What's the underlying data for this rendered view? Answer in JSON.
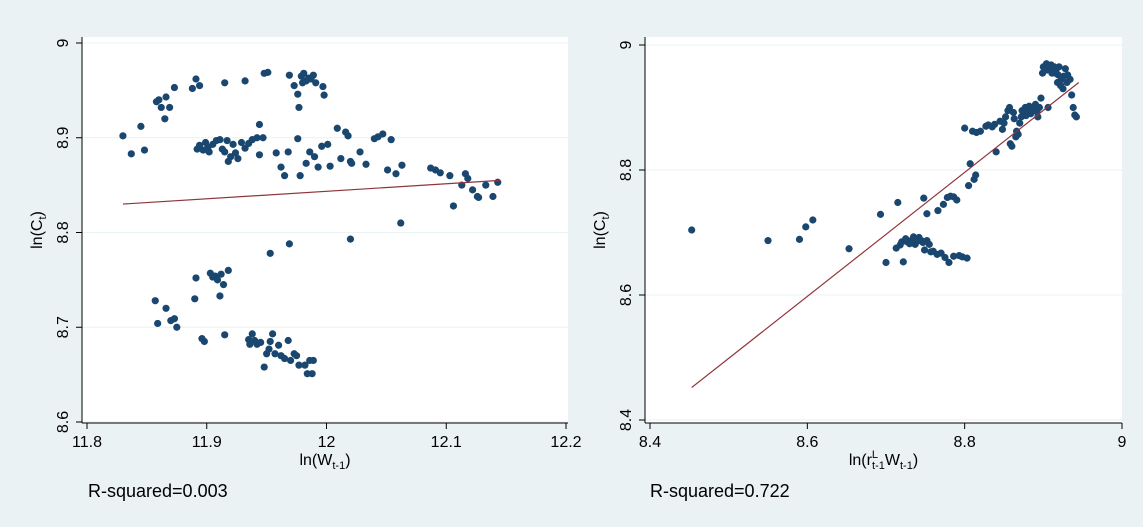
{
  "chart_data": [
    {
      "type": "scatter",
      "xlabel": "ln(W",
      "xlabel_sub": "t-1",
      "xlabel_close": ")",
      "ylabel": "ln(C",
      "ylabel_sub": "t",
      "ylabel_close": ")",
      "xlim": [
        11.8,
        12.2
      ],
      "ylim": [
        8.6,
        9.0
      ],
      "xticks": [
        "11.8",
        "11.9",
        "12",
        "12.1",
        "12.2"
      ],
      "yticks": [
        "8.6",
        "8.7",
        "8.8",
        "8.9",
        "9"
      ],
      "grid": true,
      "caption": "R-squared=0.003",
      "fit_line": {
        "x": [
          11.83,
          12.145
        ],
        "y": [
          8.83,
          8.855
        ]
      },
      "points": [
        [
          11.83,
          8.902
        ],
        [
          11.837,
          8.883
        ],
        [
          11.845,
          8.912
        ],
        [
          11.848,
          8.887
        ],
        [
          11.858,
          8.938
        ],
        [
          11.86,
          8.94
        ],
        [
          11.862,
          8.932
        ],
        [
          11.865,
          8.92
        ],
        [
          11.866,
          8.943
        ],
        [
          11.869,
          8.932
        ],
        [
          11.873,
          8.953
        ],
        [
          11.888,
          8.952
        ],
        [
          11.891,
          8.962
        ],
        [
          11.894,
          8.955
        ],
        [
          11.915,
          8.958
        ],
        [
          11.932,
          8.96
        ],
        [
          11.948,
          8.968
        ],
        [
          11.951,
          8.969
        ],
        [
          11.969,
          8.966
        ],
        [
          11.973,
          8.955
        ],
        [
          11.976,
          8.946
        ],
        [
          11.977,
          8.932
        ],
        [
          11.979,
          8.965
        ],
        [
          11.98,
          8.958
        ],
        [
          11.981,
          8.968
        ],
        [
          11.983,
          8.96
        ],
        [
          11.985,
          8.963
        ],
        [
          11.987,
          8.962
        ],
        [
          11.989,
          8.966
        ],
        [
          11.991,
          8.958
        ],
        [
          11.997,
          8.954
        ],
        [
          11.998,
          8.945
        ],
        [
          11.892,
          8.888
        ],
        [
          11.894,
          8.892
        ],
        [
          11.897,
          8.887
        ],
        [
          11.899,
          8.895
        ],
        [
          11.901,
          8.89
        ],
        [
          11.902,
          8.885
        ],
        [
          11.905,
          8.893
        ],
        [
          11.908,
          8.897
        ],
        [
          11.911,
          8.898
        ],
        [
          11.913,
          8.888
        ],
        [
          11.915,
          8.885
        ],
        [
          11.917,
          8.897
        ],
        [
          11.918,
          8.875
        ],
        [
          11.92,
          8.88
        ],
        [
          11.922,
          8.893
        ],
        [
          11.924,
          8.884
        ],
        [
          11.926,
          8.878
        ],
        [
          11.929,
          8.895
        ],
        [
          11.932,
          8.889
        ],
        [
          11.935,
          8.894
        ],
        [
          11.938,
          8.898
        ],
        [
          11.942,
          8.9
        ],
        [
          11.944,
          8.914
        ],
        [
          11.947,
          8.9
        ],
        [
          11.944,
          8.882
        ],
        [
          11.958,
          8.884
        ],
        [
          11.962,
          8.869
        ],
        [
          11.965,
          8.86
        ],
        [
          11.968,
          8.885
        ],
        [
          11.976,
          8.899
        ],
        [
          11.978,
          8.86
        ],
        [
          11.983,
          8.873
        ],
        [
          11.986,
          8.885
        ],
        [
          11.99,
          8.88
        ],
        [
          11.993,
          8.869
        ],
        [
          11.996,
          8.891
        ],
        [
          12.001,
          8.893
        ],
        [
          12.003,
          8.87
        ],
        [
          12.009,
          8.91
        ],
        [
          12.012,
          8.878
        ],
        [
          12.016,
          8.906
        ],
        [
          12.018,
          8.902
        ],
        [
          12.02,
          8.875
        ],
        [
          12.021,
          8.873
        ],
        [
          12.028,
          8.885
        ],
        [
          12.033,
          8.872
        ],
        [
          12.04,
          8.899
        ],
        [
          12.043,
          8.901
        ],
        [
          12.047,
          8.904
        ],
        [
          12.051,
          8.866
        ],
        [
          12.054,
          8.898
        ],
        [
          12.058,
          8.862
        ],
        [
          12.063,
          8.871
        ],
        [
          12.087,
          8.868
        ],
        [
          12.091,
          8.866
        ],
        [
          12.095,
          8.863
        ],
        [
          12.103,
          8.86
        ],
        [
          12.106,
          8.828
        ],
        [
          12.113,
          8.85
        ],
        [
          12.116,
          8.862
        ],
        [
          12.118,
          8.857
        ],
        [
          12.122,
          8.845
        ],
        [
          12.126,
          8.838
        ],
        [
          12.127,
          8.837
        ],
        [
          12.133,
          8.85
        ],
        [
          12.139,
          8.838
        ],
        [
          12.143,
          8.853
        ],
        [
          12.062,
          8.81
        ],
        [
          12.02,
          8.793
        ],
        [
          11.969,
          8.788
        ],
        [
          11.953,
          8.778
        ],
        [
          11.857,
          8.728
        ],
        [
          11.859,
          8.704
        ],
        [
          11.866,
          8.72
        ],
        [
          11.87,
          8.707
        ],
        [
          11.873,
          8.709
        ],
        [
          11.875,
          8.7
        ],
        [
          11.89,
          8.73
        ],
        [
          11.891,
          8.752
        ],
        [
          11.896,
          8.688
        ],
        [
          11.898,
          8.685
        ],
        [
          11.903,
          8.757
        ],
        [
          11.905,
          8.753
        ],
        [
          11.907,
          8.754
        ],
        [
          11.909,
          8.75
        ],
        [
          11.911,
          8.733
        ],
        [
          11.912,
          8.756
        ],
        [
          11.914,
          8.745
        ],
        [
          11.915,
          8.692
        ],
        [
          11.918,
          8.76
        ],
        [
          11.935,
          8.687
        ],
        [
          11.936,
          8.682
        ],
        [
          11.938,
          8.693
        ],
        [
          11.94,
          8.686
        ],
        [
          11.942,
          8.682
        ],
        [
          11.945,
          8.684
        ],
        [
          11.948,
          8.658
        ],
        [
          11.95,
          8.672
        ],
        [
          11.952,
          8.677
        ],
        [
          11.953,
          8.685
        ],
        [
          11.955,
          8.693
        ],
        [
          11.957,
          8.672
        ],
        [
          11.96,
          8.681
        ],
        [
          11.962,
          8.67
        ],
        [
          11.965,
          8.667
        ],
        [
          11.968,
          8.686
        ],
        [
          11.97,
          8.665
        ],
        [
          11.973,
          8.672
        ],
        [
          11.975,
          8.67
        ],
        [
          11.977,
          8.66
        ],
        [
          11.982,
          8.66
        ],
        [
          11.984,
          8.651
        ],
        [
          11.986,
          8.665
        ],
        [
          11.988,
          8.651
        ],
        [
          11.989,
          8.665
        ]
      ]
    },
    {
      "type": "scatter",
      "xlabel": "ln(r",
      "xlabel_sup": "L",
      "xlabel_sub": "t-1",
      "xlabel_mid": "W",
      "xlabel_sub2": "t-1",
      "xlabel_close": ")",
      "ylabel": "ln(C",
      "ylabel_sub": "t",
      "ylabel_close": ")",
      "xlim": [
        8.4,
        9.0
      ],
      "ylim": [
        8.4,
        9.0
      ],
      "xticks": [
        "8.4",
        "8.6",
        "8.8",
        "9"
      ],
      "yticks": [
        "8.4",
        "8.6",
        "8.8",
        "9"
      ],
      "grid": true,
      "caption": "R-squared=0.722",
      "fit_line": {
        "x": [
          8.453,
          8.945
        ],
        "y": [
          8.452,
          8.94
        ]
      },
      "points": [
        [
          8.453,
          8.704
        ],
        [
          8.55,
          8.687
        ],
        [
          8.59,
          8.689
        ],
        [
          8.598,
          8.709
        ],
        [
          8.607,
          8.72
        ],
        [
          8.653,
          8.674
        ],
        [
          8.693,
          8.729
        ],
        [
          8.7,
          8.652
        ],
        [
          8.713,
          8.675
        ],
        [
          8.715,
          8.748
        ],
        [
          8.718,
          8.68
        ],
        [
          8.72,
          8.685
        ],
        [
          8.722,
          8.653
        ],
        [
          8.725,
          8.69
        ],
        [
          8.727,
          8.685
        ],
        [
          8.73,
          8.682
        ],
        [
          8.733,
          8.688
        ],
        [
          8.735,
          8.693
        ],
        [
          8.737,
          8.681
        ],
        [
          8.74,
          8.686
        ],
        [
          8.742,
          8.692
        ],
        [
          8.745,
          8.687
        ],
        [
          8.747,
          8.684
        ],
        [
          8.749,
          8.672
        ],
        [
          8.752,
          8.687
        ],
        [
          8.755,
          8.681
        ],
        [
          8.757,
          8.669
        ],
        [
          8.76,
          8.67
        ],
        [
          8.765,
          8.665
        ],
        [
          8.77,
          8.667
        ],
        [
          8.775,
          8.66
        ],
        [
          8.78,
          8.652
        ],
        [
          8.786,
          8.662
        ],
        [
          8.793,
          8.663
        ],
        [
          8.797,
          8.661
        ],
        [
          8.803,
          8.659
        ],
        [
          8.748,
          8.755
        ],
        [
          8.752,
          8.73
        ],
        [
          8.766,
          8.735
        ],
        [
          8.773,
          8.745
        ],
        [
          8.778,
          8.756
        ],
        [
          8.782,
          8.758
        ],
        [
          8.786,
          8.757
        ],
        [
          8.79,
          8.752
        ],
        [
          8.805,
          8.775
        ],
        [
          8.807,
          8.81
        ],
        [
          8.812,
          8.785
        ],
        [
          8.814,
          8.792
        ],
        [
          8.8,
          8.867
        ],
        [
          8.81,
          8.862
        ],
        [
          8.815,
          8.86
        ],
        [
          8.82,
          8.862
        ],
        [
          8.827,
          8.87
        ],
        [
          8.83,
          8.872
        ],
        [
          8.835,
          8.869
        ],
        [
          8.838,
          8.873
        ],
        [
          8.84,
          8.829
        ],
        [
          8.845,
          8.878
        ],
        [
          8.848,
          8.865
        ],
        [
          8.85,
          8.875
        ],
        [
          8.852,
          8.885
        ],
        [
          8.855,
          8.895
        ],
        [
          8.857,
          8.9
        ],
        [
          8.858,
          8.842
        ],
        [
          8.86,
          8.838
        ],
        [
          8.862,
          8.892
        ],
        [
          8.863,
          8.882
        ],
        [
          8.865,
          8.853
        ],
        [
          8.866,
          8.862
        ],
        [
          8.868,
          8.857
        ],
        [
          8.87,
          8.875
        ],
        [
          8.872,
          8.885
        ],
        [
          8.873,
          8.895
        ],
        [
          8.875,
          8.89
        ],
        [
          8.877,
          8.9
        ],
        [
          8.878,
          8.887
        ],
        [
          8.88,
          8.895
        ],
        [
          8.882,
          8.902
        ],
        [
          8.884,
          8.89
        ],
        [
          8.886,
          8.895
        ],
        [
          8.888,
          8.9
        ],
        [
          8.89,
          8.905
        ],
        [
          8.892,
          8.893
        ],
        [
          8.893,
          8.885
        ],
        [
          8.895,
          8.9
        ],
        [
          8.897,
          8.915
        ],
        [
          8.899,
          8.955
        ],
        [
          8.9,
          8.965
        ],
        [
          8.902,
          8.96
        ],
        [
          8.904,
          8.97
        ],
        [
          8.905,
          8.96
        ],
        [
          8.906,
          8.9
        ],
        [
          8.908,
          8.965
        ],
        [
          8.91,
          8.968
        ],
        [
          8.911,
          8.955
        ],
        [
          8.912,
          8.963
        ],
        [
          8.914,
          8.965
        ],
        [
          8.915,
          8.955
        ],
        [
          8.916,
          8.96
        ],
        [
          8.918,
          8.94
        ],
        [
          8.919,
          8.952
        ],
        [
          8.92,
          8.965
        ],
        [
          8.922,
          8.935
        ],
        [
          8.923,
          8.945
        ],
        [
          8.925,
          8.93
        ],
        [
          8.926,
          8.95
        ],
        [
          8.928,
          8.962
        ],
        [
          8.93,
          8.94
        ],
        [
          8.931,
          8.952
        ],
        [
          8.934,
          8.945
        ],
        [
          8.936,
          8.92
        ],
        [
          8.938,
          8.9
        ],
        [
          8.94,
          8.888
        ],
        [
          8.942,
          8.885
        ]
      ]
    }
  ]
}
